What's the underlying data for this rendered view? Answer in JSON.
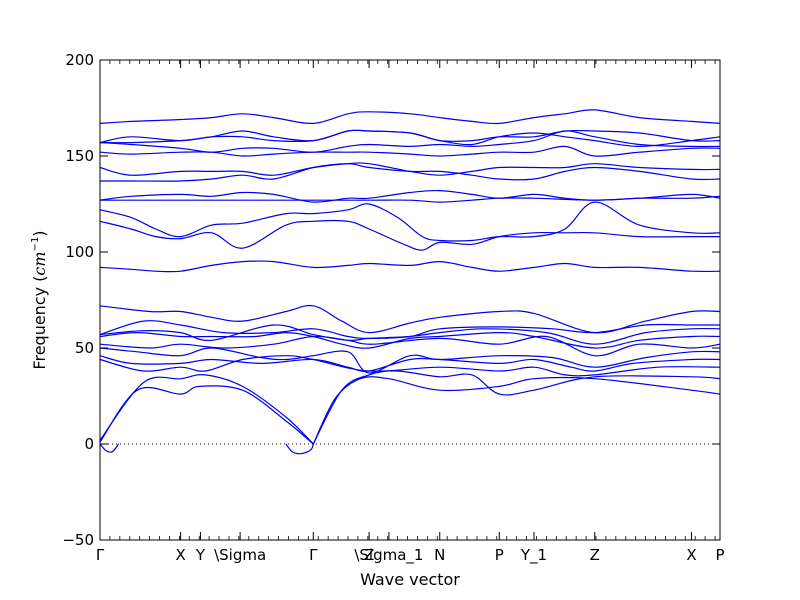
{
  "chart_data": {
    "type": "line",
    "xlabel": "Wave vector",
    "ylabel": "Frequency (",
    "ylabel_unit": "cm",
    "ylabel_exponent": "−1",
    "ylabel_close": ")",
    "ylim": [
      -50,
      200
    ],
    "y_ticks": [
      -50,
      0,
      50,
      100,
      150,
      200
    ],
    "y_tick_labels": [
      "−50",
      "0",
      "50",
      "100",
      "150",
      "200"
    ],
    "x_range": [
      0,
      1
    ],
    "x_ticks": [
      {
        "x": 0.0,
        "label": "Γ"
      },
      {
        "x": 0.13,
        "label": "X"
      },
      {
        "x": 0.162,
        "label": "Y"
      },
      {
        "x": 0.226,
        "label": "\\Sigma"
      },
      {
        "x": 0.344,
        "label": "Γ"
      },
      {
        "x": 0.434,
        "label": "Z"
      },
      {
        "x": 0.466,
        "label": "\\Sigma_1"
      },
      {
        "x": 0.548,
        "label": "N"
      },
      {
        "x": 0.644,
        "label": "P"
      },
      {
        "x": 0.7,
        "label": "Y_1"
      },
      {
        "x": 0.798,
        "label": "Z"
      },
      {
        "x": 0.954,
        "label": "X"
      },
      {
        "x": 1.0,
        "label": "P"
      }
    ],
    "zero_line": {
      "y": 0,
      "style": "dotted"
    },
    "line_color": "#0000ee",
    "grid": false,
    "series": [
      {
        "x": [
          0,
          0.01,
          0.02,
          0.03
        ],
        "y": [
          0,
          -3.5,
          -4,
          0
        ]
      },
      {
        "x": [
          0,
          0.06,
          0.13,
          0.16,
          0.23,
          0.3,
          0.344
        ],
        "y": [
          1,
          28,
          26,
          30,
          28,
          12,
          0
        ]
      },
      {
        "x": [
          0,
          0.07,
          0.13,
          0.17,
          0.23,
          0.3,
          0.344
        ],
        "y": [
          2,
          32,
          34,
          36,
          30,
          14,
          0
        ]
      },
      {
        "x": [
          0.3,
          0.31,
          0.325,
          0.34,
          0.344
        ],
        "y": [
          0,
          -4,
          -5,
          -3,
          0
        ]
      },
      {
        "x": [
          0.344,
          0.38,
          0.42,
          0.466,
          0.548,
          0.644,
          0.7,
          0.798,
          0.954,
          1.0
        ],
        "y": [
          0,
          24,
          34,
          34,
          28,
          30,
          34,
          34,
          28,
          26
        ]
      },
      {
        "x": [
          0.344,
          0.39,
          0.434,
          0.48,
          0.548,
          0.6,
          0.644,
          0.7,
          0.798,
          0.954,
          1.0
        ],
        "y": [
          0,
          28,
          36,
          38,
          35,
          36,
          26,
          28,
          35,
          35,
          34
        ]
      },
      {
        "x": [
          0,
          0.07,
          0.13,
          0.17,
          0.23,
          0.3,
          0.344,
          0.434,
          0.548,
          0.644,
          0.7,
          0.75,
          0.798,
          0.9,
          1.0
        ],
        "y": [
          44,
          38,
          40,
          38,
          44,
          46,
          44,
          38,
          40,
          38,
          40,
          36,
          36,
          40,
          40
        ]
      },
      {
        "x": [
          0,
          0.05,
          0.13,
          0.18,
          0.26,
          0.344,
          0.4,
          0.434,
          0.5,
          0.548,
          0.644,
          0.7,
          0.76,
          0.798,
          0.86,
          0.954,
          1.0
        ],
        "y": [
          46,
          42,
          42,
          44,
          42,
          44,
          40,
          38,
          44,
          44,
          42,
          44,
          40,
          38,
          42,
          44,
          44
        ]
      },
      {
        "x": [
          0,
          0.06,
          0.13,
          0.18,
          0.26,
          0.3,
          0.344,
          0.4,
          0.434,
          0.5,
          0.548,
          0.644,
          0.73,
          0.798,
          0.88,
          0.954,
          1.0
        ],
        "y": [
          50,
          48,
          46,
          50,
          45,
          44,
          46,
          48,
          37,
          46,
          44,
          46,
          45,
          40,
          45,
          48,
          48
        ]
      },
      {
        "x": [
          0,
          0.08,
          0.13,
          0.2,
          0.28,
          0.344,
          0.4,
          0.44,
          0.548,
          0.644,
          0.72,
          0.798,
          0.87,
          0.954,
          1.0
        ],
        "y": [
          52,
          50,
          52,
          50,
          52,
          56,
          54,
          52,
          55,
          52,
          56,
          46,
          52,
          50,
          52
        ]
      },
      {
        "x": [
          0,
          0.06,
          0.13,
          0.18,
          0.25,
          0.3,
          0.344,
          0.39,
          0.434,
          0.5,
          0.548,
          0.644,
          0.7,
          0.798,
          0.87,
          0.954,
          1.0
        ],
        "y": [
          56,
          58,
          56,
          56,
          56,
          58,
          56,
          52,
          50,
          55,
          56,
          58,
          56,
          50,
          54,
          56,
          56
        ]
      },
      {
        "x": [
          0,
          0.07,
          0.13,
          0.18,
          0.28,
          0.344,
          0.4,
          0.434,
          0.5,
          0.548,
          0.62,
          0.72,
          0.798,
          0.88,
          0.954,
          1.0
        ],
        "y": [
          57,
          59,
          58,
          54,
          62,
          57,
          54,
          55,
          56,
          58,
          60,
          58,
          52,
          58,
          60,
          60
        ]
      },
      {
        "x": [
          0,
          0.07,
          0.13,
          0.2,
          0.28,
          0.344,
          0.4,
          0.434,
          0.5,
          0.548,
          0.644,
          0.73,
          0.798,
          0.88,
          0.954,
          1.0
        ],
        "y": [
          57,
          64,
          62,
          58,
          58,
          60,
          56,
          55,
          56,
          60,
          61,
          60,
          58,
          62,
          62,
          62
        ]
      },
      {
        "x": [
          0,
          0.08,
          0.13,
          0.18,
          0.23,
          0.3,
          0.344,
          0.39,
          0.434,
          0.5,
          0.548,
          0.644,
          0.7,
          0.798,
          0.88,
          0.954,
          1.0
        ],
        "y": [
          72,
          69,
          69,
          66,
          64,
          69,
          72,
          64,
          58,
          63,
          66,
          69,
          68,
          58,
          64,
          69,
          69
        ]
      },
      {
        "x": [
          0,
          0.05,
          0.09,
          0.13,
          0.18,
          0.23,
          0.28,
          0.344,
          0.4,
          0.434,
          0.5,
          0.548,
          0.6,
          0.644,
          0.7,
          0.75,
          0.798,
          0.87,
          0.954,
          1.0
        ],
        "y": [
          92,
          91,
          90,
          90,
          93,
          95,
          95,
          92,
          93,
          94,
          93,
          95,
          92,
          90,
          92,
          94,
          92,
          92,
          90,
          90
        ]
      },
      {
        "x": [
          0,
          0.05,
          0.09,
          0.13,
          0.18,
          0.23,
          0.3,
          0.344,
          0.4,
          0.434,
          0.49,
          0.52,
          0.548,
          0.6,
          0.644,
          0.7,
          0.75,
          0.798,
          0.87,
          0.954,
          1.0
        ],
        "y": [
          116,
          112,
          108,
          107,
          110,
          102,
          114,
          116,
          116,
          112,
          104,
          101,
          105,
          104,
          108,
          110,
          110,
          110,
          108,
          108,
          108
        ]
      },
      {
        "x": [
          0,
          0.05,
          0.09,
          0.13,
          0.18,
          0.23,
          0.3,
          0.344,
          0.4,
          0.434,
          0.48,
          0.52,
          0.548,
          0.6,
          0.644,
          0.7,
          0.75,
          0.798,
          0.87,
          0.954,
          1.0
        ],
        "y": [
          122,
          118,
          112,
          108,
          114,
          115,
          120,
          120,
          122,
          125,
          118,
          108,
          106,
          106,
          108,
          108,
          112,
          126,
          114,
          110,
          110
        ]
      },
      {
        "x": [
          0,
          0.13,
          0.2,
          0.26,
          0.344,
          0.434,
          0.5,
          0.548,
          0.6,
          0.644,
          0.7,
          0.798,
          0.87,
          0.954,
          1.0
        ],
        "y": [
          127,
          127,
          127,
          127,
          127,
          127,
          127,
          126,
          127,
          128,
          128,
          127,
          128,
          128,
          129
        ]
      },
      {
        "x": [
          0,
          0.05,
          0.13,
          0.18,
          0.23,
          0.28,
          0.344,
          0.4,
          0.434,
          0.5,
          0.548,
          0.6,
          0.644,
          0.7,
          0.75,
          0.798,
          0.87,
          0.954,
          1.0
        ],
        "y": [
          127,
          129,
          130,
          129,
          131,
          130,
          126,
          128,
          128,
          131,
          132,
          130,
          128,
          130,
          128,
          127,
          128,
          130,
          128
        ]
      },
      {
        "x": [
          0,
          0.05,
          0.13,
          0.18,
          0.23,
          0.28,
          0.344,
          0.4,
          0.434,
          0.5,
          0.548,
          0.6,
          0.644,
          0.7,
          0.75,
          0.798,
          0.87,
          0.954,
          1.0
        ],
        "y": [
          137,
          137,
          137,
          138,
          140,
          138,
          144,
          146,
          144,
          142,
          142,
          140,
          138,
          138,
          142,
          144,
          142,
          138,
          138
        ]
      },
      {
        "x": [
          0,
          0.05,
          0.13,
          0.18,
          0.23,
          0.28,
          0.344,
          0.4,
          0.434,
          0.5,
          0.548,
          0.6,
          0.644,
          0.7,
          0.75,
          0.798,
          0.87,
          0.954,
          1.0
        ],
        "y": [
          144,
          140,
          142,
          142,
          142,
          140,
          144,
          146,
          146,
          142,
          140,
          142,
          144,
          144,
          144,
          146,
          144,
          143,
          143
        ]
      },
      {
        "x": [
          0,
          0.05,
          0.13,
          0.18,
          0.23,
          0.28,
          0.344,
          0.4,
          0.434,
          0.5,
          0.548,
          0.6,
          0.644,
          0.7,
          0.75,
          0.798,
          0.87,
          0.954,
          1.0
        ],
        "y": [
          152,
          151,
          152,
          152,
          150,
          151,
          152,
          152,
          152,
          151,
          150,
          151,
          152,
          152,
          155,
          150,
          152,
          154,
          154
        ]
      },
      {
        "x": [
          0,
          0.05,
          0.13,
          0.18,
          0.23,
          0.28,
          0.344,
          0.4,
          0.434,
          0.5,
          0.548,
          0.6,
          0.644,
          0.7,
          0.75,
          0.798,
          0.87,
          0.954,
          1.0
        ],
        "y": [
          157,
          156,
          154,
          152,
          154,
          154,
          152,
          155,
          156,
          155,
          156,
          155,
          156,
          158,
          163,
          160,
          156,
          155,
          155
        ]
      },
      {
        "x": [
          0,
          0.05,
          0.13,
          0.18,
          0.23,
          0.28,
          0.344,
          0.4,
          0.434,
          0.5,
          0.548,
          0.6,
          0.644,
          0.7,
          0.75,
          0.798,
          0.87,
          0.954,
          1.0
        ],
        "y": [
          157,
          160,
          158,
          160,
          160,
          158,
          158,
          163,
          163,
          162,
          158,
          158,
          160,
          160,
          163,
          163,
          162,
          158,
          158
        ]
      },
      {
        "x": [
          0,
          0.05,
          0.13,
          0.18,
          0.23,
          0.28,
          0.344,
          0.4,
          0.434,
          0.5,
          0.548,
          0.6,
          0.644,
          0.7,
          0.75,
          0.798,
          0.87,
          0.954,
          1.0
        ],
        "y": [
          157,
          157,
          158,
          160,
          163,
          160,
          158,
          163,
          163,
          162,
          158,
          156,
          160,
          162,
          160,
          158,
          155,
          158,
          160
        ]
      },
      {
        "x": [
          0,
          0.05,
          0.13,
          0.18,
          0.23,
          0.28,
          0.344,
          0.4,
          0.434,
          0.5,
          0.548,
          0.6,
          0.644,
          0.7,
          0.75,
          0.798,
          0.87,
          0.954,
          1.0
        ],
        "y": [
          167,
          168,
          169,
          170,
          172,
          170,
          167,
          172,
          173,
          172,
          170,
          168,
          167,
          170,
          172,
          174,
          170,
          168,
          167
        ]
      }
    ]
  }
}
